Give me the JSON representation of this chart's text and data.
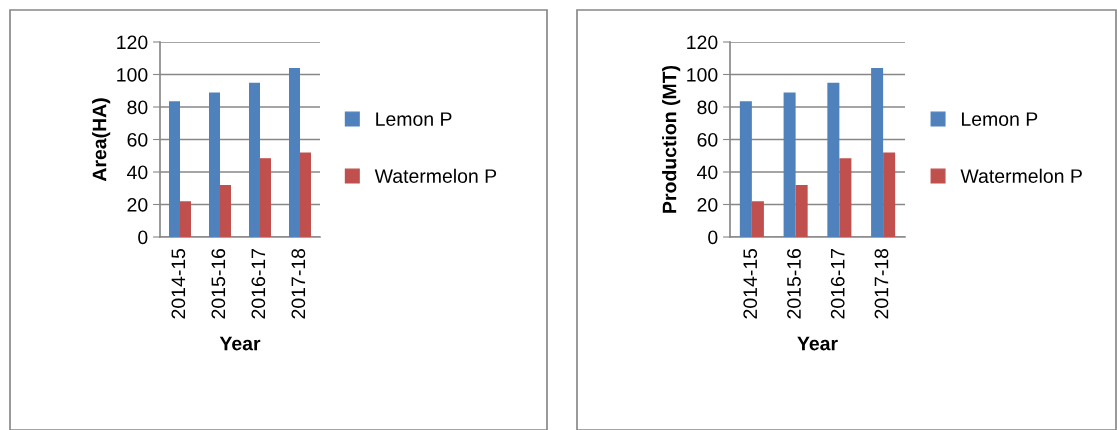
{
  "chart_data": [
    {
      "type": "bar",
      "categories": [
        "2014-15",
        "2015-16",
        "2016-17",
        "2017-18"
      ],
      "xlabel": "Year",
      "ylabel": "Area(HA)",
      "ylim": [
        0,
        120
      ],
      "yticks": [
        0,
        20,
        40,
        60,
        80,
        100,
        120
      ],
      "grid": "y",
      "legend": "right",
      "series": [
        {
          "name": "Lemon P",
          "color": "#4f81bd",
          "values": [
            83.5,
            89,
            95,
            104
          ]
        },
        {
          "name": "Watermelon P",
          "color": "#c0504d",
          "values": [
            22,
            32,
            48.5,
            52
          ]
        }
      ]
    },
    {
      "type": "bar",
      "categories": [
        "2014-15",
        "2015-16",
        "2016-17",
        "2017-18"
      ],
      "xlabel": "Year",
      "ylabel": "Production (MT)",
      "ylim": [
        0,
        120
      ],
      "yticks": [
        0,
        20,
        40,
        60,
        80,
        100,
        120
      ],
      "grid": "y",
      "legend": "right",
      "series": [
        {
          "name": "Lemon P",
          "color": "#4f81bd",
          "values": [
            83.5,
            89,
            95,
            104
          ]
        },
        {
          "name": "Watermelon P",
          "color": "#c0504d",
          "values": [
            22,
            32,
            48.5,
            52
          ]
        }
      ]
    }
  ]
}
